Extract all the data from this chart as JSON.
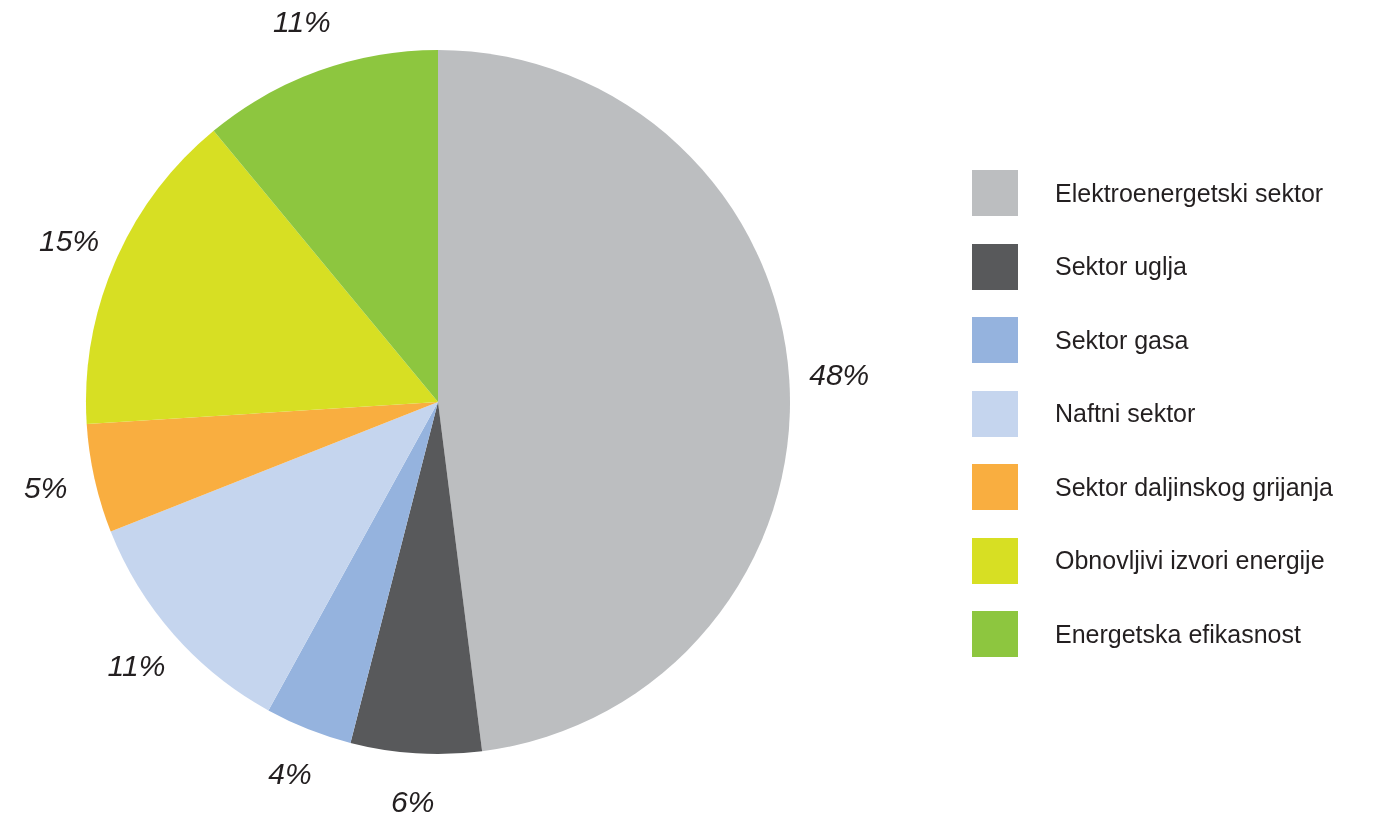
{
  "chart_data": {
    "type": "pie",
    "categories": [
      "Elektroenergetski sektor",
      "Sektor uglja",
      "Sektor gasa",
      "Naftni sektor",
      "Sektor daljinskog grijanja",
      "Obnovljivi izvori energije",
      "Energetska efikasnost"
    ],
    "values": [
      48,
      6,
      4,
      11,
      5,
      15,
      11
    ],
    "value_labels": [
      "48%",
      "6%",
      "4%",
      "11%",
      "5%",
      "15%",
      "11%"
    ],
    "colors": [
      "#bcbec0",
      "#58595b",
      "#95b3de",
      "#c5d5ee",
      "#f9ae40",
      "#d7df23",
      "#8dc63f"
    ],
    "legend": "right"
  }
}
